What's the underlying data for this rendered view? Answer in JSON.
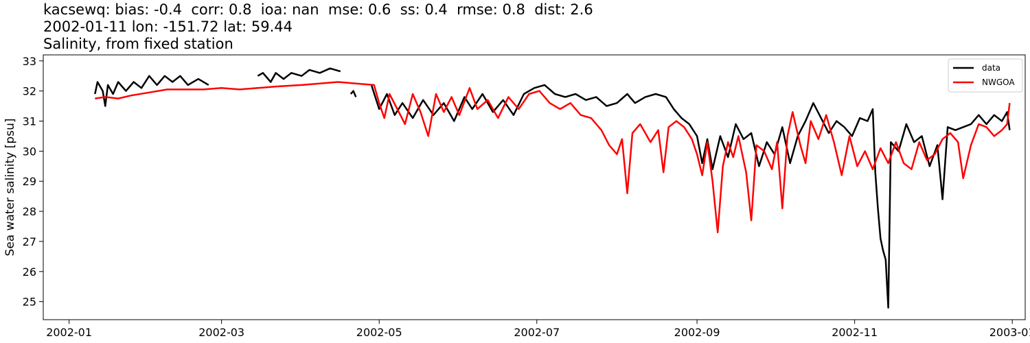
{
  "title_lines": [
    "kacsewq: bias: -0.4  corr: 0.8  ioa: nan  mse: 0.6  ss: 0.4  rmse: 0.8  dist: 2.6",
    "2002-01-11 lon: -151.72 lat: 59.44",
    "Salinity, from fixed station"
  ],
  "colors": {
    "data": "#000000",
    "model": "#ff0000"
  },
  "chart_data": {
    "type": "line",
    "title": "kacsewq: bias: -0.4  corr: 0.8  ioa: nan  mse: 0.6  ss: 0.4  rmse: 0.8  dist: 2.6\n2002-01-11 lon: -151.72 lat: 59.44\nSalinity, from fixed station",
    "xlabel": "",
    "ylabel": "Sea water salinity [psu]",
    "xlim": [
      "2001-12-22",
      "2003-01-06"
    ],
    "ylim": [
      24.4,
      33.2
    ],
    "x_ticks": [
      "2002-01",
      "2002-03",
      "2002-05",
      "2002-07",
      "2002-09",
      "2002-11",
      "2003-01"
    ],
    "y_ticks": [
      25,
      26,
      27,
      28,
      29,
      30,
      31,
      32,
      33
    ],
    "legend": {
      "position": "top-right",
      "entries": [
        "data",
        "NWGOA"
      ]
    },
    "grid": false,
    "series": [
      {
        "name": "data",
        "color": "#000000",
        "points": [
          [
            "2002-01-11",
            31.9
          ],
          [
            "2002-01-12",
            32.3
          ],
          [
            "2002-01-14",
            32.0
          ],
          [
            "2002-01-15",
            31.5
          ],
          [
            "2002-01-16",
            32.2
          ],
          [
            "2002-01-18",
            31.9
          ],
          [
            "2002-01-20",
            32.3
          ],
          [
            "2002-01-23",
            32.0
          ],
          [
            "2002-01-26",
            32.3
          ],
          [
            "2002-01-29",
            32.1
          ],
          [
            "2002-02-01",
            32.5
          ],
          [
            "2002-02-04",
            32.2
          ],
          [
            "2002-02-07",
            32.5
          ],
          [
            "2002-02-10",
            32.3
          ],
          [
            "2002-02-13",
            32.5
          ],
          [
            "2002-02-16",
            32.2
          ],
          [
            "2002-02-20",
            32.4
          ],
          [
            "2002-02-24",
            32.2
          ],
          null,
          [
            "2002-03-15",
            32.5
          ],
          [
            "2002-03-17",
            32.6
          ],
          [
            "2002-03-20",
            32.3
          ],
          [
            "2002-03-22",
            32.6
          ],
          [
            "2002-03-25",
            32.4
          ],
          [
            "2002-03-28",
            32.6
          ],
          [
            "2002-04-01",
            32.5
          ],
          [
            "2002-04-04",
            32.7
          ],
          [
            "2002-04-08",
            32.6
          ],
          [
            "2002-04-12",
            32.75
          ],
          [
            "2002-04-16",
            32.65
          ],
          null,
          [
            "2002-04-20",
            31.9
          ],
          [
            "2002-04-21",
            32.0
          ],
          [
            "2002-04-22",
            31.8
          ],
          null,
          [
            "2002-04-28",
            32.2
          ],
          [
            "2002-05-01",
            31.4
          ],
          [
            "2002-05-04",
            31.9
          ],
          [
            "2002-05-07",
            31.2
          ],
          [
            "2002-05-10",
            31.6
          ],
          [
            "2002-05-14",
            31.1
          ],
          [
            "2002-05-18",
            31.7
          ],
          [
            "2002-05-22",
            31.2
          ],
          [
            "2002-05-26",
            31.6
          ],
          [
            "2002-05-30",
            31.0
          ],
          [
            "2002-06-03",
            31.8
          ],
          [
            "2002-06-06",
            31.4
          ],
          [
            "2002-06-10",
            31.9
          ],
          [
            "2002-06-14",
            31.3
          ],
          [
            "2002-06-18",
            31.7
          ],
          [
            "2002-06-22",
            31.2
          ],
          [
            "2002-06-26",
            31.9
          ],
          [
            "2002-06-30",
            32.1
          ],
          [
            "2002-07-04",
            32.2
          ],
          [
            "2002-07-08",
            31.9
          ],
          [
            "2002-07-12",
            31.8
          ],
          [
            "2002-07-16",
            31.9
          ],
          [
            "2002-07-20",
            31.7
          ],
          [
            "2002-07-24",
            31.8
          ],
          [
            "2002-07-28",
            31.5
          ],
          [
            "2002-08-01",
            31.6
          ],
          [
            "2002-08-05",
            31.9
          ],
          [
            "2002-08-08",
            31.6
          ],
          [
            "2002-08-12",
            31.8
          ],
          [
            "2002-08-16",
            31.9
          ],
          [
            "2002-08-20",
            31.8
          ],
          [
            "2002-08-23",
            31.4
          ],
          [
            "2002-08-26",
            31.1
          ],
          [
            "2002-08-29",
            30.9
          ],
          [
            "2002-09-01",
            30.5
          ],
          [
            "2002-09-03",
            29.6
          ],
          [
            "2002-09-05",
            30.4
          ],
          [
            "2002-09-07",
            29.4
          ],
          [
            "2002-09-10",
            30.5
          ],
          [
            "2002-09-13",
            29.8
          ],
          [
            "2002-09-16",
            30.9
          ],
          [
            "2002-09-19",
            30.4
          ],
          [
            "2002-09-22",
            30.6
          ],
          [
            "2002-09-25",
            29.5
          ],
          [
            "2002-09-28",
            30.3
          ],
          [
            "2002-10-01",
            29.9
          ],
          [
            "2002-10-04",
            30.8
          ],
          [
            "2002-10-07",
            29.6
          ],
          [
            "2002-10-10",
            30.5
          ],
          [
            "2002-10-13",
            31.0
          ],
          [
            "2002-10-16",
            31.6
          ],
          [
            "2002-10-19",
            31.1
          ],
          [
            "2002-10-22",
            30.6
          ],
          [
            "2002-10-25",
            31.0
          ],
          [
            "2002-10-28",
            30.8
          ],
          [
            "2002-10-31",
            30.5
          ],
          [
            "2002-11-03",
            31.1
          ],
          [
            "2002-11-06",
            31.0
          ],
          [
            "2002-11-08",
            31.4
          ],
          [
            "2002-11-09",
            29.3
          ],
          [
            "2002-11-10",
            28.1
          ],
          [
            "2002-11-11",
            27.1
          ],
          [
            "2002-11-12",
            26.7
          ],
          [
            "2002-11-13",
            26.4
          ],
          [
            "2002-11-14",
            24.8
          ],
          [
            "2002-11-15",
            30.3
          ],
          [
            "2002-11-18",
            30.0
          ],
          [
            "2002-11-21",
            30.9
          ],
          [
            "2002-11-24",
            30.3
          ],
          [
            "2002-11-27",
            30.5
          ],
          [
            "2002-11-30",
            29.5
          ],
          [
            "2002-12-03",
            30.2
          ],
          [
            "2002-12-05",
            28.4
          ],
          [
            "2002-12-07",
            30.8
          ],
          [
            "2002-12-10",
            30.7
          ],
          [
            "2002-12-13",
            30.8
          ],
          [
            "2002-12-16",
            30.9
          ],
          [
            "2002-12-19",
            31.2
          ],
          [
            "2002-12-22",
            30.9
          ],
          [
            "2002-12-25",
            31.2
          ],
          [
            "2002-12-28",
            31.0
          ],
          [
            "2002-12-30",
            31.3
          ],
          [
            "2002-12-31",
            30.7
          ]
        ]
      },
      {
        "name": "NWGOA",
        "color": "#ff0000",
        "points": [
          [
            "2002-01-11",
            31.75
          ],
          [
            "2002-01-15",
            31.8
          ],
          [
            "2002-01-20",
            31.75
          ],
          [
            "2002-01-25",
            31.85
          ],
          [
            "2002-02-01",
            31.95
          ],
          [
            "2002-02-08",
            32.05
          ],
          [
            "2002-02-15",
            32.05
          ],
          [
            "2002-02-22",
            32.05
          ],
          [
            "2002-03-01",
            32.1
          ],
          [
            "2002-03-08",
            32.05
          ],
          [
            "2002-03-15",
            32.1
          ],
          [
            "2002-03-22",
            32.15
          ],
          [
            "2002-04-01",
            32.2
          ],
          [
            "2002-04-08",
            32.25
          ],
          [
            "2002-04-15",
            32.3
          ],
          [
            "2002-04-22",
            32.25
          ],
          [
            "2002-04-29",
            32.2
          ],
          [
            "2002-05-01",
            31.6
          ],
          [
            "2002-05-03",
            31.1
          ],
          [
            "2002-05-05",
            31.9
          ],
          [
            "2002-05-08",
            31.4
          ],
          [
            "2002-05-11",
            30.9
          ],
          [
            "2002-05-14",
            31.9
          ],
          [
            "2002-05-17",
            31.3
          ],
          [
            "2002-05-20",
            30.5
          ],
          [
            "2002-05-23",
            31.9
          ],
          [
            "2002-05-26",
            31.3
          ],
          [
            "2002-05-29",
            31.8
          ],
          [
            "2002-06-01",
            31.2
          ],
          [
            "2002-06-05",
            32.1
          ],
          [
            "2002-06-08",
            31.4
          ],
          [
            "2002-06-12",
            31.7
          ],
          [
            "2002-06-16",
            31.1
          ],
          [
            "2002-06-20",
            31.8
          ],
          [
            "2002-06-24",
            31.4
          ],
          [
            "2002-06-28",
            31.9
          ],
          [
            "2002-07-02",
            32.0
          ],
          [
            "2002-07-06",
            31.6
          ],
          [
            "2002-07-10",
            31.4
          ],
          [
            "2002-07-14",
            31.6
          ],
          [
            "2002-07-18",
            31.2
          ],
          [
            "2002-07-22",
            31.1
          ],
          [
            "2002-07-26",
            30.7
          ],
          [
            "2002-07-29",
            30.2
          ],
          [
            "2002-08-01",
            29.9
          ],
          [
            "2002-08-03",
            30.4
          ],
          [
            "2002-08-05",
            28.6
          ],
          [
            "2002-08-07",
            30.6
          ],
          [
            "2002-08-10",
            30.9
          ],
          [
            "2002-08-14",
            30.3
          ],
          [
            "2002-08-17",
            30.7
          ],
          [
            "2002-08-19",
            29.3
          ],
          [
            "2002-08-21",
            30.8
          ],
          [
            "2002-08-24",
            31.0
          ],
          [
            "2002-08-27",
            30.8
          ],
          [
            "2002-08-30",
            30.4
          ],
          [
            "2002-09-01",
            29.9
          ],
          [
            "2002-09-03",
            29.2
          ],
          [
            "2002-09-05",
            30.3
          ],
          [
            "2002-09-07",
            29.0
          ],
          [
            "2002-09-09",
            27.3
          ],
          [
            "2002-09-11",
            29.5
          ],
          [
            "2002-09-13",
            30.3
          ],
          [
            "2002-09-15",
            29.8
          ],
          [
            "2002-09-17",
            30.5
          ],
          [
            "2002-09-20",
            29.3
          ],
          [
            "2002-09-22",
            27.7
          ],
          [
            "2002-09-24",
            30.2
          ],
          [
            "2002-09-27",
            30.0
          ],
          [
            "2002-09-30",
            29.4
          ],
          [
            "2002-10-02",
            30.3
          ],
          [
            "2002-10-04",
            28.1
          ],
          [
            "2002-10-06",
            30.5
          ],
          [
            "2002-10-08",
            31.3
          ],
          [
            "2002-10-11",
            30.2
          ],
          [
            "2002-10-13",
            29.6
          ],
          [
            "2002-10-15",
            31.0
          ],
          [
            "2002-10-18",
            30.4
          ],
          [
            "2002-10-21",
            31.2
          ],
          [
            "2002-10-24",
            30.3
          ],
          [
            "2002-10-27",
            29.2
          ],
          [
            "2002-10-30",
            30.5
          ],
          [
            "2002-11-02",
            29.5
          ],
          [
            "2002-11-05",
            30.0
          ],
          [
            "2002-11-08",
            29.4
          ],
          [
            "2002-11-11",
            30.1
          ],
          [
            "2002-11-14",
            29.6
          ],
          [
            "2002-11-17",
            30.3
          ],
          [
            "2002-11-20",
            29.6
          ],
          [
            "2002-11-23",
            29.4
          ],
          [
            "2002-11-26",
            30.3
          ],
          [
            "2002-11-29",
            29.7
          ],
          [
            "2002-12-02",
            29.9
          ],
          [
            "2002-12-05",
            30.4
          ],
          [
            "2002-12-08",
            30.6
          ],
          [
            "2002-12-11",
            30.3
          ],
          [
            "2002-12-13",
            29.1
          ],
          [
            "2002-12-16",
            30.2
          ],
          [
            "2002-12-19",
            30.9
          ],
          [
            "2002-12-22",
            30.8
          ],
          [
            "2002-12-25",
            30.5
          ],
          [
            "2002-12-28",
            30.7
          ],
          [
            "2002-12-30",
            30.9
          ],
          [
            "2002-12-31",
            31.6
          ]
        ]
      }
    ]
  }
}
